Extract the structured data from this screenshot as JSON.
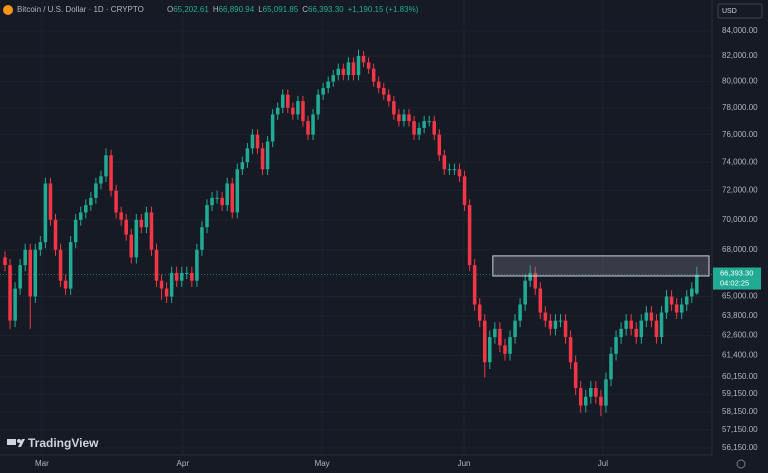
{
  "header": {
    "symbol": "Bitcoin / U.S. Dollar · 1D · CRYPTO",
    "ohlc": [
      {
        "key": "O",
        "value": "65,202.61"
      },
      {
        "key": "H",
        "value": "66,890.94"
      },
      {
        "key": "L",
        "value": "65,091.85"
      },
      {
        "key": "C",
        "value": "66,393.30"
      }
    ],
    "change": "+1,190.15 (+1.83%)",
    "currency": "USD",
    "brand": "TradingView"
  },
  "chart_data": {
    "type": "candlestick",
    "log_scale": true,
    "up_color": "#22ab94",
    "down_color": "#f23645",
    "ylim": [
      55770,
      86560
    ],
    "xlim": [
      -0.99,
      140
    ],
    "yticks": [
      {
        "value": 84000,
        "label": "84,000.00"
      },
      {
        "value": 82000,
        "label": "82,000.00"
      },
      {
        "value": 80000,
        "label": "80,000.00"
      },
      {
        "value": 78000,
        "label": "78,000.00"
      },
      {
        "value": 76000,
        "label": "76,000.00"
      },
      {
        "value": 74000,
        "label": "74,000.00"
      },
      {
        "value": 72000,
        "label": "72,000.00"
      },
      {
        "value": 70000,
        "label": "70,000.00"
      },
      {
        "value": 68000,
        "label": "68,000.00"
      },
      {
        "value": 65000,
        "label": "65,000.00"
      },
      {
        "value": 63800,
        "label": "63,800.00"
      },
      {
        "value": 62600,
        "label": "62,600.00"
      },
      {
        "value": 61400,
        "label": "61,400.00"
      },
      {
        "value": 60150,
        "label": "60,150.00"
      },
      {
        "value": 59150,
        "label": "59,150.00"
      },
      {
        "value": 58150,
        "label": "58,150.00"
      },
      {
        "value": 57150,
        "label": "57,150.00"
      },
      {
        "value": 56150,
        "label": "56,150.00"
      }
    ],
    "xticks": [
      {
        "value": 7.3,
        "label": "Mar"
      },
      {
        "value": 35.2,
        "label": "Apr"
      },
      {
        "value": 62.8,
        "label": "May"
      },
      {
        "value": 90.9,
        "label": "Jun"
      },
      {
        "value": 118.4,
        "label": "Jul"
      }
    ],
    "zone": {
      "start": 96.6,
      "low": 66300,
      "high": 67600
    },
    "price_label": {
      "value": 66393.3,
      "label": "66,393.30",
      "countdown": "04:02:25"
    },
    "candles": [
      [
        67500,
        67900,
        66600,
        67000
      ],
      [
        67000,
        67400,
        63000,
        63500
      ],
      [
        63500,
        65900,
        63100,
        65500
      ],
      [
        65500,
        67400,
        65100,
        67000
      ],
      [
        67000,
        68400,
        66600,
        68000
      ],
      [
        68000,
        68400,
        63000,
        65000
      ],
      [
        65000,
        68400,
        64600,
        68000
      ],
      [
        68000,
        68900,
        67600,
        68500
      ],
      [
        68500,
        72900,
        68100,
        72500
      ],
      [
        72500,
        72900,
        69600,
        70000
      ],
      [
        70000,
        70400,
        67600,
        68000
      ],
      [
        68000,
        68400,
        65600,
        66000
      ],
      [
        66000,
        66400,
        65100,
        65500
      ],
      [
        65500,
        68900,
        65100,
        68500
      ],
      [
        68500,
        70400,
        68100,
        70000
      ],
      [
        70000,
        70900,
        69600,
        70500
      ],
      [
        70500,
        71400,
        70100,
        71000
      ],
      [
        71000,
        71900,
        70600,
        71500
      ],
      [
        71500,
        72900,
        71100,
        72500
      ],
      [
        72500,
        73400,
        72100,
        73000
      ],
      [
        73000,
        75000,
        72600,
        74500
      ],
      [
        74500,
        74900,
        71600,
        72000
      ],
      [
        72000,
        72400,
        70100,
        70500
      ],
      [
        70500,
        70900,
        69600,
        70000
      ],
      [
        70000,
        70400,
        68600,
        69000
      ],
      [
        69000,
        69400,
        67100,
        67500
      ],
      [
        67500,
        70400,
        67100,
        70000
      ],
      [
        70000,
        70400,
        69100,
        69500
      ],
      [
        69500,
        70900,
        69100,
        70500
      ],
      [
        70500,
        70900,
        67600,
        68000
      ],
      [
        68000,
        68400,
        65600,
        66000
      ],
      [
        66000,
        66400,
        64800,
        65500
      ],
      [
        65500,
        65900,
        64600,
        65000
      ],
      [
        65000,
        66900,
        64600,
        66500
      ],
      [
        66500,
        66900,
        65600,
        66000
      ],
      [
        66000,
        66900,
        65600,
        66500
      ],
      [
        66500,
        66900,
        66100,
        66500
      ],
      [
        66500,
        66900,
        65600,
        66000
      ],
      [
        66000,
        68400,
        65600,
        68000
      ],
      [
        68000,
        69900,
        67600,
        69500
      ],
      [
        69500,
        71400,
        69100,
        71000
      ],
      [
        71000,
        71900,
        70600,
        71500
      ],
      [
        71500,
        72000,
        71100,
        71500
      ],
      [
        71500,
        71900,
        70600,
        71000
      ],
      [
        71000,
        72900,
        70600,
        72500
      ],
      [
        72500,
        72900,
        70100,
        70500
      ],
      [
        70500,
        73900,
        70100,
        73500
      ],
      [
        73500,
        74400,
        73100,
        74000
      ],
      [
        74000,
        75400,
        73600,
        75000
      ],
      [
        75000,
        76400,
        74600,
        76000
      ],
      [
        76000,
        76400,
        74600,
        75000
      ],
      [
        75000,
        75400,
        73100,
        73500
      ],
      [
        73500,
        75900,
        73100,
        75500
      ],
      [
        75500,
        77900,
        75100,
        77500
      ],
      [
        77500,
        78400,
        77100,
        78000
      ],
      [
        78000,
        79400,
        77600,
        79000
      ],
      [
        79000,
        79400,
        77600,
        78000
      ],
      [
        78000,
        78400,
        77100,
        77500
      ],
      [
        77500,
        78900,
        77100,
        78500
      ],
      [
        78500,
        78900,
        76600,
        77000
      ],
      [
        77000,
        77400,
        75600,
        76000
      ],
      [
        76000,
        77900,
        75600,
        77500
      ],
      [
        77500,
        79400,
        77100,
        79000
      ],
      [
        79000,
        79900,
        78600,
        79500
      ],
      [
        79500,
        80400,
        79100,
        80000
      ],
      [
        80000,
        80900,
        79600,
        80500
      ],
      [
        80500,
        81400,
        80100,
        81000
      ],
      [
        81000,
        81400,
        80100,
        80500
      ],
      [
        80500,
        81900,
        80100,
        81500
      ],
      [
        81500,
        81900,
        80100,
        80500
      ],
      [
        80500,
        82500,
        80100,
        82000
      ],
      [
        82000,
        82400,
        81100,
        81500
      ],
      [
        81500,
        81900,
        80600,
        81000
      ],
      [
        81000,
        81400,
        79600,
        80000
      ],
      [
        80000,
        80400,
        79100,
        79500
      ],
      [
        79500,
        79900,
        78600,
        79000
      ],
      [
        79000,
        79400,
        78100,
        78500
      ],
      [
        78500,
        78900,
        77100,
        77500
      ],
      [
        77500,
        77900,
        76600,
        77000
      ],
      [
        77000,
        77900,
        76600,
        77500
      ],
      [
        77500,
        77900,
        76600,
        77000
      ],
      [
        77000,
        77400,
        75600,
        76000
      ],
      [
        76000,
        76900,
        75600,
        76500
      ],
      [
        76500,
        77400,
        76100,
        77000
      ],
      [
        77000,
        77400,
        76600,
        77000
      ],
      [
        77000,
        77400,
        75600,
        76000
      ],
      [
        76000,
        76400,
        74100,
        74500
      ],
      [
        74500,
        74900,
        73100,
        73500
      ],
      [
        73500,
        73900,
        73100,
        73500
      ],
      [
        73500,
        73900,
        73100,
        73500
      ],
      [
        73500,
        73900,
        72600,
        73000
      ],
      [
        73000,
        73400,
        70600,
        71000
      ],
      [
        71000,
        71400,
        66600,
        67000
      ],
      [
        67000,
        67400,
        64100,
        64500
      ],
      [
        64500,
        64900,
        63100,
        63500
      ],
      [
        63500,
        63900,
        60100,
        61000
      ],
      [
        61000,
        62900,
        60600,
        62500
      ],
      [
        62500,
        63400,
        62100,
        63000
      ],
      [
        63000,
        63400,
        61600,
        62000
      ],
      [
        62000,
        62400,
        61100,
        61500
      ],
      [
        61500,
        62900,
        61100,
        62500
      ],
      [
        62500,
        63900,
        62100,
        63500
      ],
      [
        63500,
        64900,
        63100,
        64500
      ],
      [
        64500,
        66400,
        64100,
        66000
      ],
      [
        66000,
        67000,
        65600,
        66500
      ],
      [
        66500,
        66900,
        65100,
        65500
      ],
      [
        65500,
        65900,
        63600,
        64000
      ],
      [
        64000,
        64400,
        63100,
        63500
      ],
      [
        63500,
        63900,
        62600,
        63000
      ],
      [
        63000,
        63900,
        62600,
        63500
      ],
      [
        63500,
        63900,
        63100,
        63500
      ],
      [
        63500,
        63900,
        62100,
        62500
      ],
      [
        62500,
        62900,
        60600,
        61000
      ],
      [
        61000,
        61400,
        59100,
        59500
      ],
      [
        59500,
        59900,
        58100,
        58500
      ],
      [
        58500,
        59400,
        58100,
        59000
      ],
      [
        59000,
        59900,
        58600,
        59500
      ],
      [
        59500,
        59900,
        58600,
        59000
      ],
      [
        59000,
        59400,
        57900,
        58500
      ],
      [
        58500,
        60400,
        58100,
        60000
      ],
      [
        60000,
        61900,
        59600,
        61500
      ],
      [
        61500,
        62900,
        61100,
        62500
      ],
      [
        62500,
        63400,
        62100,
        63000
      ],
      [
        63000,
        63900,
        62600,
        63500
      ],
      [
        63500,
        63900,
        62600,
        63000
      ],
      [
        63000,
        63400,
        62100,
        62500
      ],
      [
        62500,
        63900,
        62100,
        63500
      ],
      [
        63500,
        64400,
        63100,
        64000
      ],
      [
        64000,
        64400,
        63100,
        63500
      ],
      [
        63500,
        63900,
        62100,
        62500
      ],
      [
        62500,
        64400,
        62100,
        64000
      ],
      [
        64000,
        65400,
        63600,
        65000
      ],
      [
        65000,
        65400,
        64100,
        64500
      ],
      [
        64500,
        64900,
        63600,
        64000
      ],
      [
        64000,
        64900,
        63600,
        64500
      ],
      [
        64500,
        65400,
        64100,
        65000
      ],
      [
        65000,
        65900,
        64600,
        65500
      ],
      [
        65202.61,
        66890.94,
        65091.85,
        66393.3
      ]
    ]
  }
}
